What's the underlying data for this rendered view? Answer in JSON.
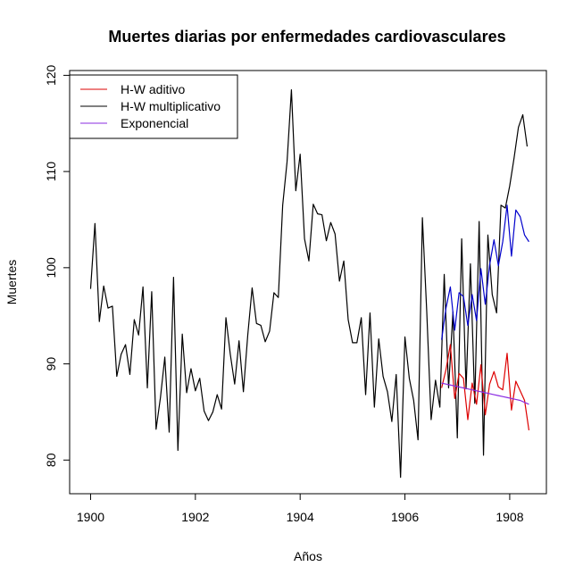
{
  "chart_data": {
    "type": "line",
    "title": "Muertes diarias por enfermedades cardiovasculares",
    "xlabel": "Años",
    "ylabel": "Muertes",
    "xlim": [
      1899.6,
      1908.7
    ],
    "ylim": [
      76.5,
      120.5
    ],
    "xticks": [
      1900,
      1902,
      1904,
      1906,
      1908
    ],
    "yticks": [
      80,
      90,
      100,
      110,
      120
    ],
    "grid": false,
    "legend_position": "top-left",
    "legend": [
      {
        "label": "H-W aditivo",
        "color": "#dd0000"
      },
      {
        "label": "H-W multiplicativo",
        "color": "#000000"
      },
      {
        "label": "Exponencial",
        "color": "#8a2be2"
      }
    ],
    "series": [
      {
        "color": "#000000",
        "x_start": 1900.0,
        "x_step": 0.08333,
        "values": [
          97.8,
          104.6,
          94.4,
          98.1,
          95.8,
          96.0,
          88.7,
          91.0,
          92.0,
          88.9,
          94.6,
          93.0,
          98.0,
          87.5,
          97.5,
          83.2,
          86.5,
          90.7,
          82.9,
          99.0,
          81.0,
          93.1,
          87.0,
          89.5,
          87.2,
          88.5,
          85.1,
          84.1,
          85.0,
          86.8,
          85.3,
          94.8,
          91.0,
          87.9,
          92.4,
          87.1,
          93.0,
          97.9,
          94.2,
          94.0,
          92.3,
          93.4,
          97.4,
          96.9,
          106.5,
          111.0,
          118.5,
          108.0,
          111.8,
          103.0,
          100.7,
          106.6,
          105.6,
          105.5,
          102.8,
          104.7,
          103.5,
          98.6,
          100.7,
          94.6,
          92.2,
          92.2,
          94.8,
          86.8,
          95.3,
          85.5,
          92.6,
          88.7,
          87.1,
          84.0,
          88.9,
          78.2,
          92.8,
          88.5,
          86.2,
          82.1,
          105.2,
          95.4,
          84.2,
          88.3,
          85.5,
          99.3,
          87.5,
          95.4,
          82.3,
          103.0,
          87.4,
          100.4,
          85.9,
          104.8,
          80.5,
          103.4,
          97.2,
          95.3,
          106.5,
          106.2,
          108.5,
          111.4,
          114.6,
          115.9,
          112.6
        ]
      },
      {
        "color": "#dd0000",
        "x_start": 1906.7,
        "x_step": 0.08333,
        "values": [
          87.5,
          89.4,
          92.0,
          86.4,
          89.0,
          88.5,
          84.2,
          88.0,
          85.8,
          89.9,
          84.7,
          87.9,
          89.2,
          87.6,
          87.3,
          91.1,
          85.2,
          88.2,
          87.2,
          86.2,
          83.1
        ]
      },
      {
        "color": "#0000cc",
        "x_start": 1906.7,
        "x_step": 0.08333,
        "values": [
          92.5,
          95.8,
          98.0,
          93.5,
          97.4,
          97.0,
          94.0,
          97.2,
          94.5,
          99.9,
          96.2,
          100.3,
          102.9,
          100.2,
          102.7,
          106.5,
          101.2,
          106.0,
          105.3,
          103.4,
          102.7
        ]
      },
      {
        "color": "#8a2be2",
        "x_start": 1906.7,
        "x_step": 0.08333,
        "values": [
          88.0,
          87.9,
          87.8,
          87.7,
          87.6,
          87.5,
          87.4,
          87.3,
          87.2,
          87.1,
          87.0,
          86.9,
          86.8,
          86.7,
          86.6,
          86.5,
          86.4,
          86.3,
          86.2,
          86.0,
          85.8
        ]
      }
    ]
  }
}
